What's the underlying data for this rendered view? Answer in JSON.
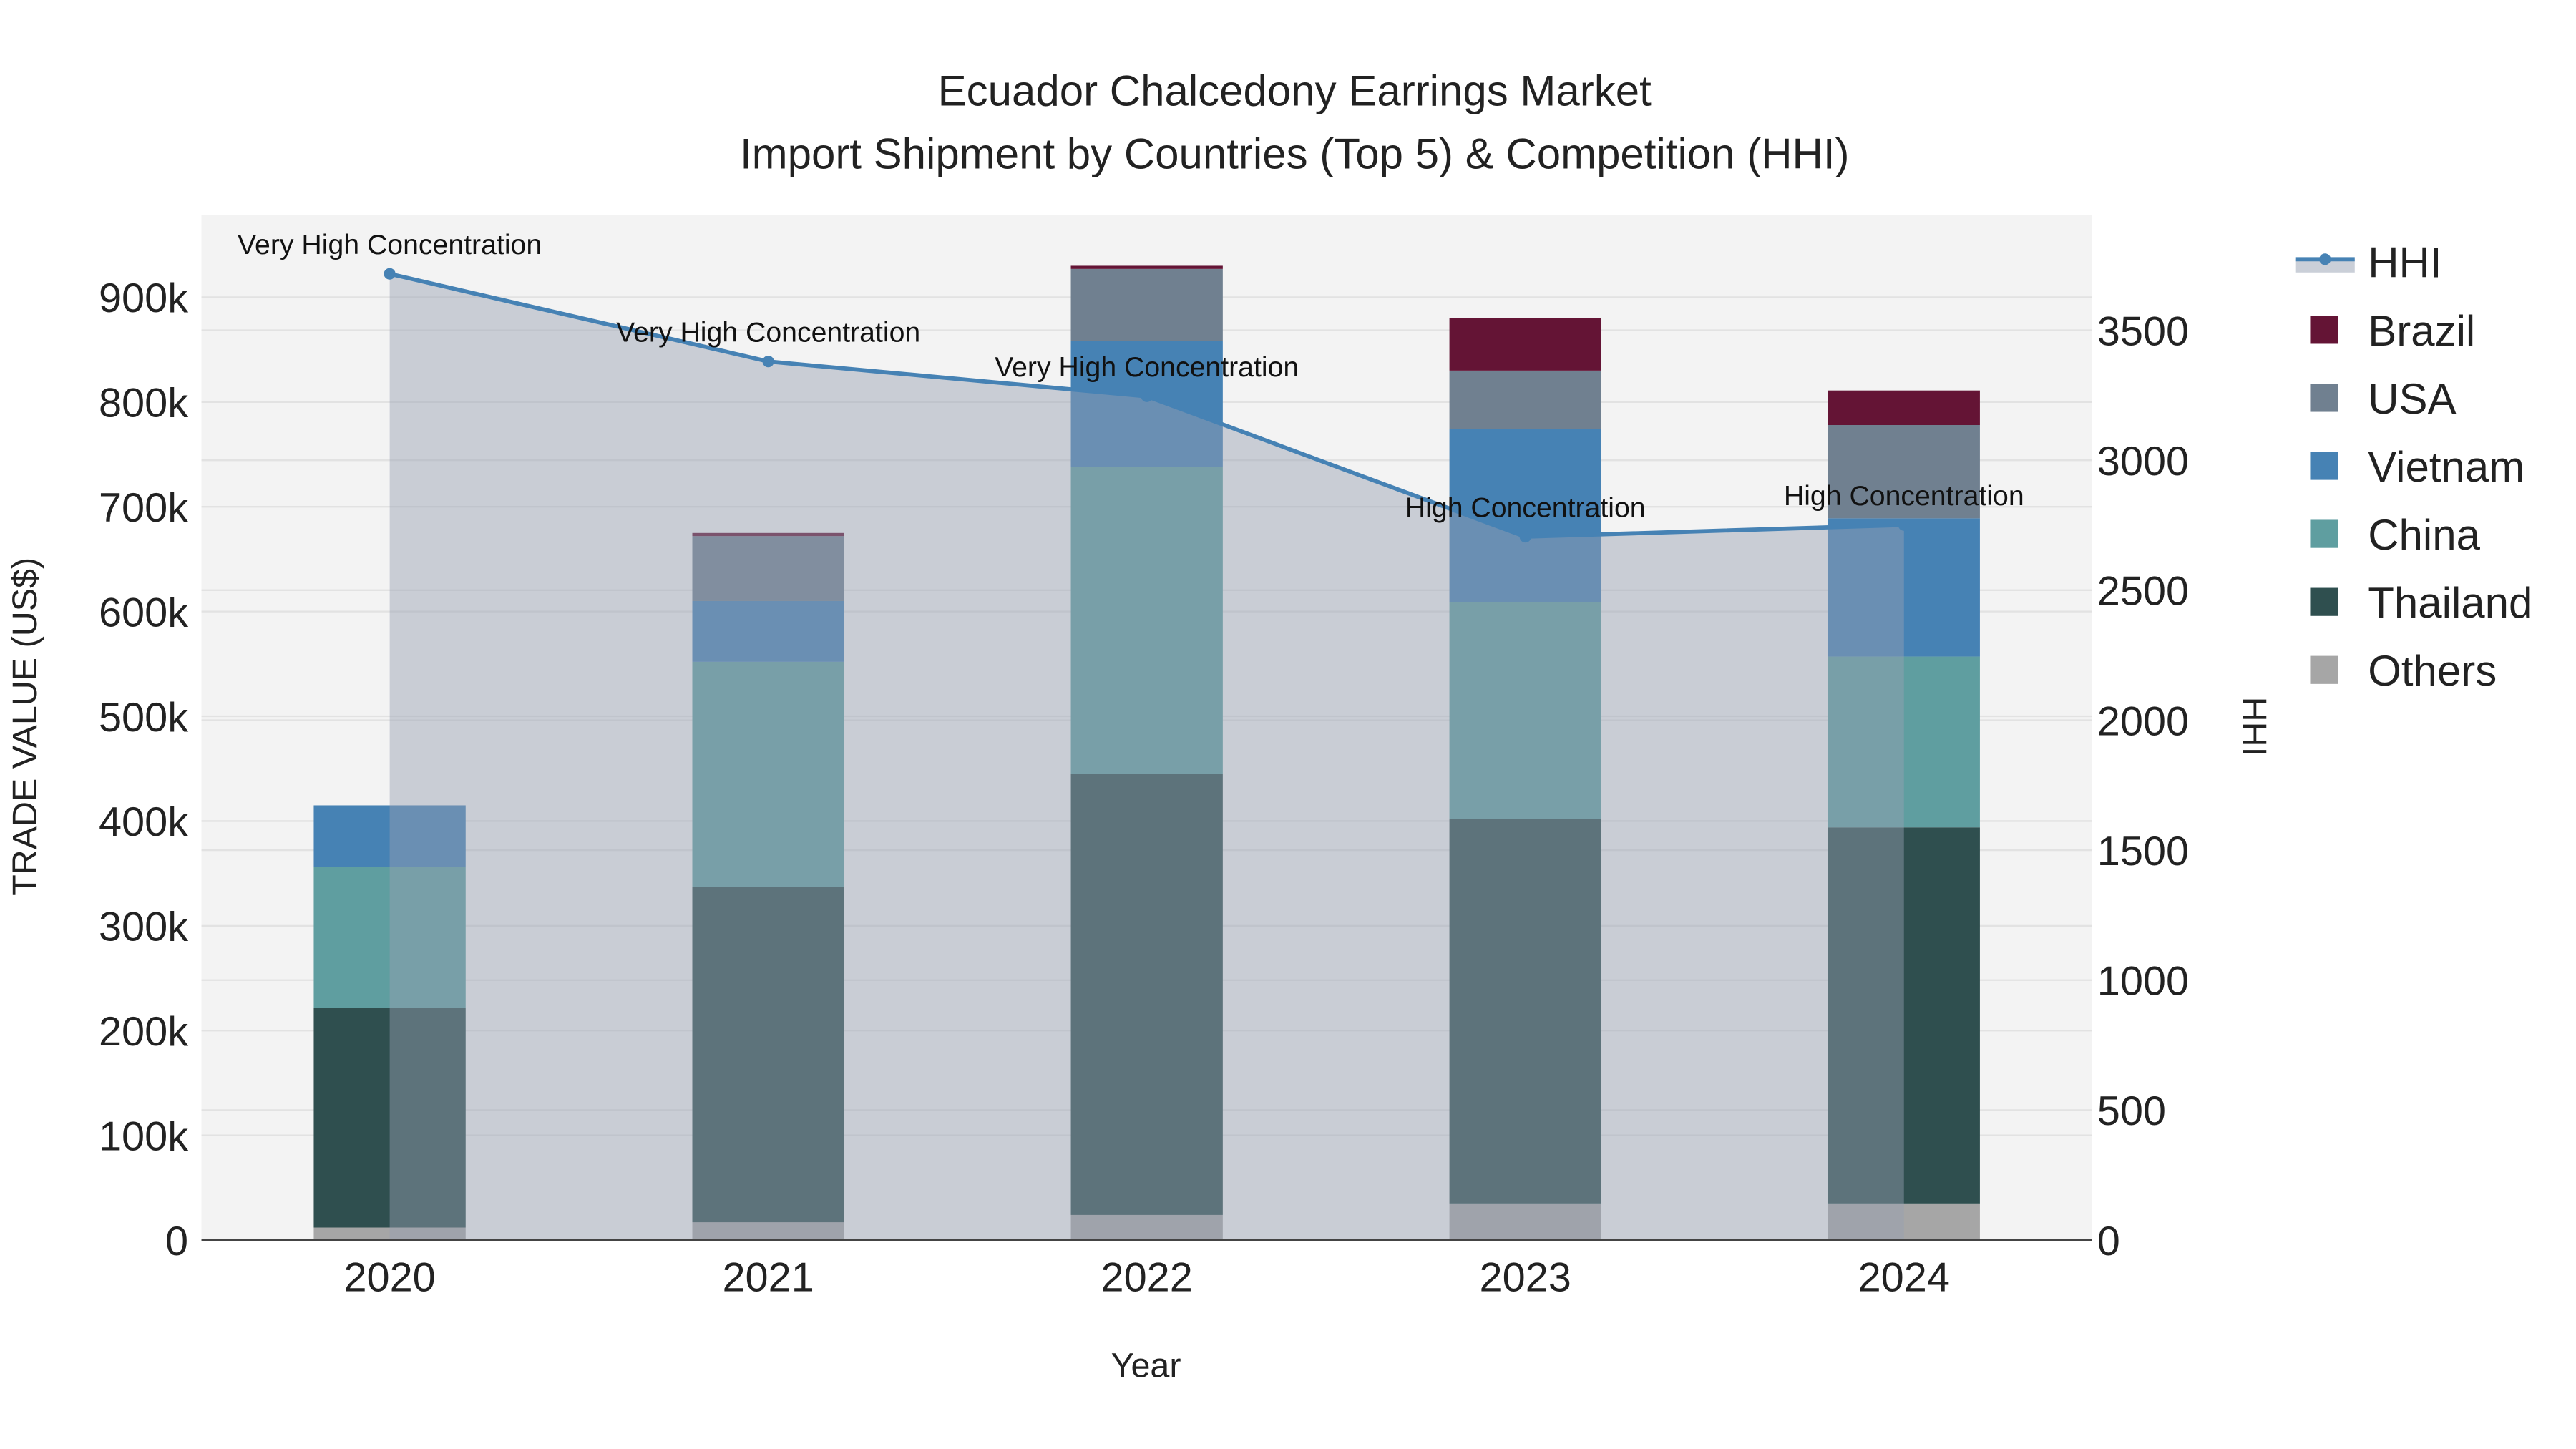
{
  "chart_data": {
    "type": "bar",
    "title": "Ecuador Chalcedony Earrings Market",
    "subtitle": "Import Shipment by Countries (Top 5) & Competition (HHI)",
    "xlabel": "Year",
    "ylabel": "TRADE VALUE (US$)",
    "y2label": "HHI",
    "categories": [
      "2020",
      "2021",
      "2022",
      "2023",
      "2024"
    ],
    "ylim": [
      0,
      980000
    ],
    "y2lim": [
      0,
      3950
    ],
    "yticks": [
      0,
      100000,
      200000,
      300000,
      400000,
      500000,
      600000,
      700000,
      800000,
      900000
    ],
    "ytick_labels": [
      "0",
      "100k",
      "200k",
      "300k",
      "400k",
      "500k",
      "600k",
      "700k",
      "800k",
      "900k"
    ],
    "y2ticks": [
      0,
      500,
      1000,
      1500,
      2000,
      2500,
      3000,
      3500
    ],
    "y2tick_labels": [
      "0",
      "500",
      "1000",
      "1500",
      "2000",
      "2500",
      "3000",
      "3500"
    ],
    "stacked": true,
    "series": [
      {
        "name": "Others",
        "color": "#a6a6a6",
        "values": [
          12000,
          17000,
          24000,
          35000,
          35000
        ]
      },
      {
        "name": "Thailand",
        "color": "#2f4f4f",
        "values": [
          210000,
          320000,
          421000,
          367000,
          359000
        ]
      },
      {
        "name": "China",
        "color": "#5f9ea0",
        "values": [
          134000,
          215000,
          293000,
          207000,
          163000
        ]
      },
      {
        "name": "Vietnam",
        "color": "#4682b4",
        "values": [
          59000,
          58000,
          120000,
          165000,
          132000
        ]
      },
      {
        "name": "USA",
        "color": "#708090",
        "values": [
          0,
          62000,
          69000,
          56000,
          89000
        ]
      },
      {
        "name": "Brazil",
        "color": "#641435",
        "values": [
          0,
          3000,
          3000,
          50000,
          33000
        ]
      }
    ],
    "line": {
      "name": "HHI",
      "color": "#4682b4",
      "axis": "right",
      "values": [
        3717,
        3380,
        3246,
        2706,
        2751
      ],
      "annotations": [
        "Very High Concentration",
        "Very High Concentration",
        "Very High Concentration",
        "High Concentration",
        "High Concentration"
      ]
    },
    "legend": [
      "HHI",
      "Brazil",
      "USA",
      "Vietnam",
      "China",
      "Thailand",
      "Others"
    ],
    "legend_position": "right",
    "grid": true
  }
}
